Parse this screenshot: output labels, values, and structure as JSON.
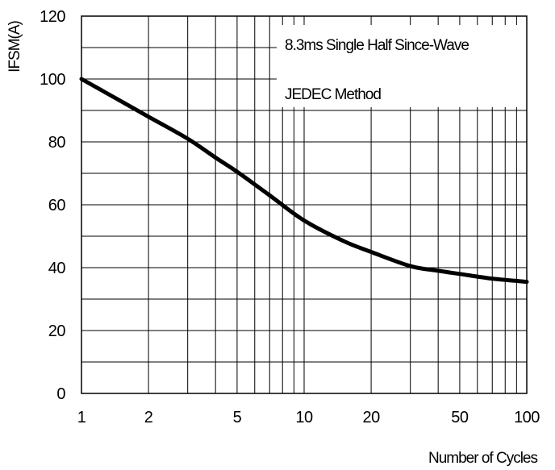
{
  "chart_data": {
    "type": "line",
    "title": "",
    "xlabel": "Number of Cycles",
    "ylabel": "IFSM(A)",
    "x_scale": "log",
    "xlim": [
      1,
      100
    ],
    "ylim": [
      0,
      120
    ],
    "grid": true,
    "x_ticks": [
      1,
      2,
      5,
      10,
      20,
      50,
      100
    ],
    "y_ticks": [
      0,
      20,
      40,
      60,
      80,
      100,
      120
    ],
    "x_minor_grid": [
      3,
      4,
      6,
      7,
      8,
      9,
      30,
      40,
      60,
      70,
      80,
      90
    ],
    "y_minor_grid": [
      10,
      30,
      50,
      70,
      90,
      110
    ],
    "annotations": [
      "8.3ms Single Half Since-Wave",
      "JEDEC Method"
    ],
    "series": [
      {
        "name": "",
        "color": "#000000",
        "x": [
          1,
          1.5,
          2,
          3,
          4,
          5,
          7,
          10,
          15,
          20,
          30,
          40,
          50,
          70,
          100
        ],
        "y": [
          100,
          93,
          88,
          81,
          75,
          70.5,
          63,
          55,
          48.5,
          45,
          40.5,
          39,
          38,
          36.5,
          35.5
        ]
      }
    ]
  }
}
